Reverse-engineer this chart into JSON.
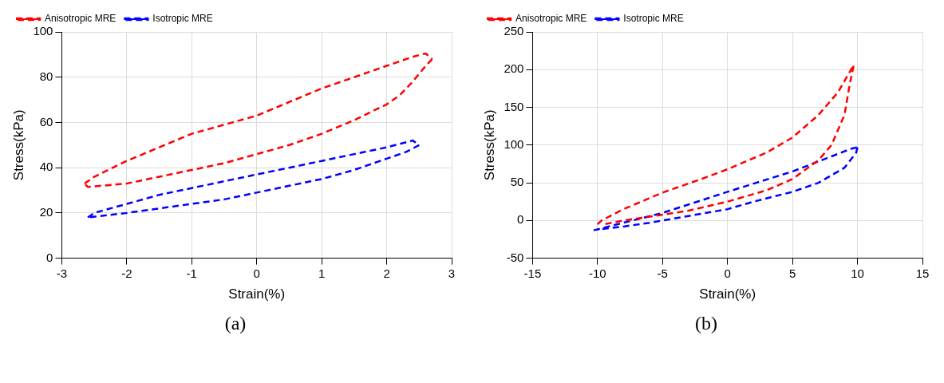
{
  "chart_data": [
    {
      "type": "line",
      "xlabel": "Strain(%)",
      "ylabel": "Stress(kPa)",
      "annotations": [
        "(a)"
      ],
      "xlim": [
        -3,
        3
      ],
      "xticks": [
        -3,
        -2,
        -1,
        0,
        1,
        2,
        3
      ],
      "ylim": [
        0,
        100
      ],
      "yticks": [
        0,
        20,
        40,
        60,
        80,
        100
      ],
      "grid": true,
      "legend": "top left",
      "marker": "none",
      "line_style": "dashed",
      "series": [
        {
          "name": "Anisotropic MRE",
          "color": "#ff0000",
          "x": [
            -2.65,
            -2.5,
            -2,
            -1.5,
            -1,
            -0.5,
            0,
            0.5,
            1,
            1.5,
            2,
            2.4,
            2.6,
            2.7
          ],
          "values": [
            33,
            36,
            43,
            49,
            55,
            59,
            63,
            69,
            75,
            80,
            85,
            89,
            90.5,
            88
          ]
        },
        {
          "color": "#ff0000",
          "x": [
            2.7,
            2.6,
            2.4,
            2.2,
            2,
            1.5,
            1,
            0.5,
            0,
            -0.5,
            -1,
            -1.5,
            -2,
            -2.4,
            -2.6,
            -2.65
          ],
          "values": [
            88,
            85,
            78,
            72,
            68,
            61,
            55,
            50,
            46,
            42,
            39,
            36,
            33,
            32,
            31.5,
            33
          ]
        },
        {
          "name": "Isotropic MRE",
          "color": "#0000ff",
          "x": [
            -2.6,
            -2.5,
            -2,
            -1.5,
            -1,
            -0.5,
            0,
            0.5,
            1,
            1.5,
            2,
            2.4,
            2.5
          ],
          "values": [
            18,
            20,
            24,
            28,
            31,
            34,
            37,
            40,
            43,
            46,
            49,
            52,
            50
          ]
        },
        {
          "color": "#0000ff",
          "x": [
            2.5,
            2.3,
            2,
            1.5,
            1,
            0.5,
            0,
            -0.5,
            -1,
            -1.5,
            -2,
            -2.6
          ],
          "values": [
            50,
            47,
            44,
            39,
            35,
            32,
            29,
            26,
            24,
            22,
            20,
            18
          ]
        }
      ]
    },
    {
      "type": "line",
      "xlabel": "Strain(%)",
      "ylabel": "Stress(kPa)",
      "annotations": [
        "(b)"
      ],
      "xlim": [
        -15,
        15
      ],
      "xticks": [
        -15,
        -10,
        -5,
        0,
        5,
        10,
        15
      ],
      "ylim": [
        -50,
        250
      ],
      "yticks": [
        -50,
        0,
        50,
        100,
        150,
        200,
        250
      ],
      "grid": true,
      "legend": "top left",
      "marker": "none",
      "line_style": "dashed",
      "series": [
        {
          "name": "Anisotropic MRE",
          "color": "#ff0000",
          "x": [
            -10,
            -9.7,
            -8,
            -5,
            -2,
            0,
            3,
            5,
            7,
            8.5,
            9.5,
            9.7
          ],
          "values": [
            -5,
            0,
            15,
            37,
            55,
            68,
            90,
            110,
            140,
            170,
            200,
            205
          ]
        },
        {
          "color": "#ff0000",
          "x": [
            9.7,
            9.4,
            9,
            8,
            7,
            5,
            3,
            0,
            -3,
            -6,
            -8,
            -9.5
          ],
          "values": [
            205,
            180,
            140,
            100,
            80,
            55,
            40,
            25,
            13,
            5,
            0,
            -5
          ]
        },
        {
          "name": "Isotropic MRE",
          "color": "#0000ff",
          "x": [
            -10.3,
            -8,
            -5,
            0,
            5,
            8,
            9.5,
            10
          ],
          "values": [
            -13,
            -3,
            10,
            38,
            65,
            85,
            95,
            97
          ]
        },
        {
          "color": "#0000ff",
          "x": [
            10,
            9.9,
            9,
            7,
            5,
            2,
            0,
            -3,
            -6,
            -8,
            -10
          ],
          "values": [
            97,
            90,
            70,
            50,
            38,
            25,
            15,
            6,
            -3,
            -8,
            -12
          ]
        }
      ]
    }
  ]
}
